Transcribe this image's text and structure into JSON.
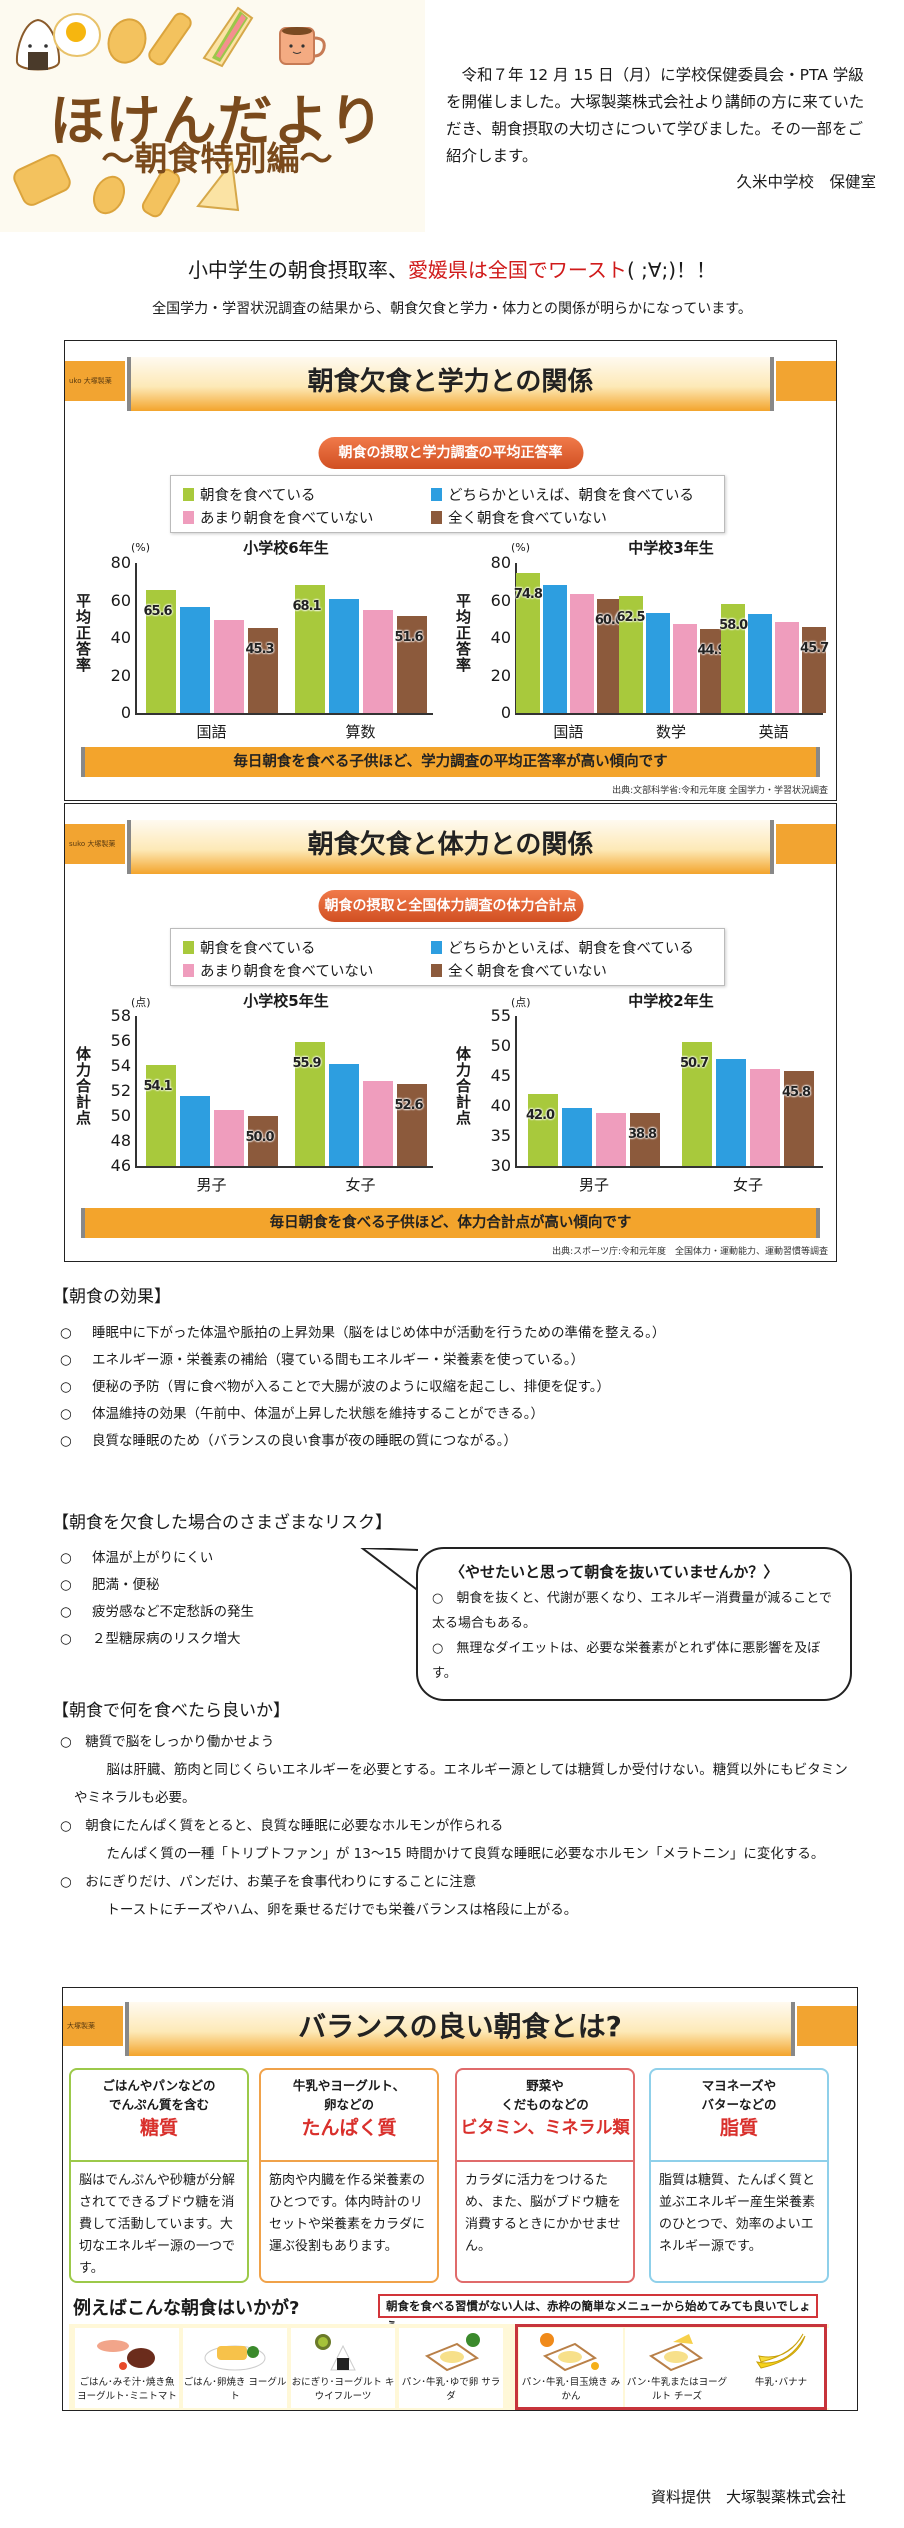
{
  "header": {
    "title": "ほけんだより",
    "subtitle": "～朝食特別編～",
    "intro": "令和７年 12 月 15 日（月）に学校保健委員会・PTA 学級を開催しました。大塚製薬株式会社より講師の方に来ていただき、朝食摂取の大切さについて学びました。その一部をご紹介します。",
    "signature": "久米中学校　保健室"
  },
  "headline": {
    "prefix": "小中学生の朝食摂取率、",
    "highlight": "愛媛県は全国でワースト",
    "suffix": "( ;∀;)！！"
  },
  "subline": "全国学力・学習状況調査の結果から、朝食欠食と学力・体力との関係が明らかになっています。",
  "legend": {
    "items": [
      {
        "label": "朝食を食べている",
        "color": "#a8c93c"
      },
      {
        "label": "どちらかといえば、朝食を食べている",
        "color": "#2d9ee0"
      },
      {
        "label": "あまり朝食を食べていない",
        "color": "#ef9dbd"
      },
      {
        "label": "全く朝食を食べていない",
        "color": "#8c5a3c"
      }
    ]
  },
  "panel_academic": {
    "brand": "uko 大塚製薬",
    "title": "朝食欠食と学力との関係",
    "pill": "朝食の摂取と学力調査の平均正答率",
    "tagline": "毎日朝食を食べる子供ほど、学力調査の平均正答率が高い傾向です",
    "source": "出典:文部科学省:令和元年度 全国学力・学習状況調査"
  },
  "panel_fitness": {
    "brand": "suko 大塚製薬",
    "title": "朝食欠食と体力との関係",
    "pill": "朝食の摂取と全国体力調査の体力合計点",
    "tagline": "毎日朝食を食べる子供ほど、体力合計点が高い傾向です",
    "source": "出典:スポーツ庁:令和元年度　全国体力・運動能力、運動習慣等調査"
  },
  "chart_data": [
    {
      "type": "bar",
      "title": "小学校6年生",
      "ylabel": "平均正答率",
      "unit": "(%)",
      "ylim": [
        0,
        80
      ],
      "yticks": [
        0,
        20,
        40,
        60,
        80
      ],
      "categories": [
        "国語",
        "算数"
      ],
      "series": [
        {
          "name": "朝食を食べている",
          "values": [
            65.6,
            68.1
          ]
        },
        {
          "name": "どちらかといえば、朝食を食べている",
          "values": [
            56.5,
            61.0
          ]
        },
        {
          "name": "あまり朝食を食べていない",
          "values": [
            49.5,
            55.0
          ]
        },
        {
          "name": "全く朝食を食べていない",
          "values": [
            45.3,
            51.6
          ]
        }
      ],
      "labels": [
        [
          "65.6",
          null,
          null,
          "45.3"
        ],
        [
          "68.1",
          null,
          null,
          "51.6"
        ]
      ]
    },
    {
      "type": "bar",
      "title": "中学校3年生",
      "ylabel": "平均正答率",
      "unit": "(%)",
      "ylim": [
        0,
        80
      ],
      "yticks": [
        0,
        20,
        40,
        60,
        80
      ],
      "categories": [
        "国語",
        "数学",
        "英語"
      ],
      "series": [
        {
          "name": "朝食を食べている",
          "values": [
            74.8,
            62.5,
            58.0
          ]
        },
        {
          "name": "どちらかといえば、朝食を食べている",
          "values": [
            68.5,
            53.5,
            53.0
          ]
        },
        {
          "name": "あまり朝食を食べていない",
          "values": [
            63.5,
            47.5,
            48.5
          ]
        },
        {
          "name": "全く朝食を食べていない",
          "values": [
            60.6,
            44.9,
            45.7
          ]
        }
      ],
      "labels": [
        [
          "74.8",
          null,
          null,
          "60.6"
        ],
        [
          "62.5",
          null,
          null,
          "44.9"
        ],
        [
          "58.0",
          null,
          null,
          "45.7"
        ]
      ]
    },
    {
      "type": "bar",
      "title": "小学校5年生",
      "ylabel": "体力合計点",
      "unit": "(点)",
      "ylim": [
        46,
        58
      ],
      "yticks": [
        46,
        48,
        50,
        52,
        54,
        56,
        58
      ],
      "categories": [
        "男子",
        "女子"
      ],
      "series": [
        {
          "name": "朝食を食べている",
          "values": [
            54.1,
            55.9
          ]
        },
        {
          "name": "どちらかといえば、朝食を食べている",
          "values": [
            51.6,
            54.2
          ]
        },
        {
          "name": "あまり朝食を食べていない",
          "values": [
            50.5,
            52.8
          ]
        },
        {
          "name": "全く朝食を食べていない",
          "values": [
            50.0,
            52.6
          ]
        }
      ],
      "labels": [
        [
          "54.1",
          null,
          null,
          "50.0"
        ],
        [
          "55.9",
          null,
          null,
          "52.6"
        ]
      ]
    },
    {
      "type": "bar",
      "title": "中学校2年生",
      "ylabel": "体力合計点",
      "unit": "(点)",
      "ylim": [
        30,
        55
      ],
      "yticks": [
        30,
        35,
        40,
        45,
        50,
        55
      ],
      "categories": [
        "男子",
        "女子"
      ],
      "series": [
        {
          "name": "朝食を食べている",
          "values": [
            42.0,
            50.7
          ]
        },
        {
          "name": "どちらかといえば、朝食を食べている",
          "values": [
            39.7,
            47.8
          ]
        },
        {
          "name": "あまり朝食を食べていない",
          "values": [
            38.9,
            46.2
          ]
        },
        {
          "name": "全く朝食を食べていない",
          "values": [
            38.8,
            45.8
          ]
        }
      ],
      "labels": [
        [
          "42.0",
          null,
          null,
          "38.8"
        ],
        [
          "50.7",
          null,
          null,
          "45.8"
        ]
      ]
    }
  ],
  "effects": {
    "title": "【朝食の効果】",
    "bullet": "○",
    "items": [
      "睡眠中に下がった体温や脈拍の上昇効果（脳をはじめ体中が活動を行うための準備を整える。）",
      "エネルギー源・栄養素の補給（寝ている間もエネルギー・栄養素を使っている。）",
      "便秘の予防（胃に食べ物が入ることで大腸が波のように収縮を起こし、排便を促す。）",
      "体温維持の効果（午前中、体温が上昇した状態を維持することができる。）",
      "良質な睡眠のため（バランスの良い食事が夜の睡眠の質につながる。）"
    ]
  },
  "risks": {
    "title": "【朝食を欠食した場合のさまざまなリスク】",
    "items": [
      "体温が上がりにくい",
      "肥満・便秘",
      "疲労感など不定愁訴の発生",
      "２型糖尿病のリスク増大"
    ]
  },
  "bubble": {
    "title": "〈やせたいと思って朝食を抜いていませんか？〉",
    "items": [
      "○　朝食を抜くと、代謝が悪くなり、エネルギー消費量が減ることで太る場合もある。",
      "○　無理なダイエットは、必要な栄養素がとれず体に悪影響を及ぼす。"
    ]
  },
  "what_to_eat": {
    "title": "【朝食で何を食べたら良いか】",
    "items": [
      {
        "head": "○　糖質で脳をしっかり働かせよう",
        "body": "脳は肝臓、筋肉と同じくらいエネルギーを必要とする。エネルギー源としては糖質しか受付けない。糖質以外にもビタミンやミネラルも必要。"
      },
      {
        "head": "○　朝食にたんぱく質をとると、良質な睡眠に必要なホルモンが作られる",
        "body": "たんぱく質の一種「トリプトファン」が 13～15 時間かけて良質な睡眠に必要なホルモン「メラトニン」に変化する。"
      },
      {
        "head": "○　おにぎりだけ、パンだけ、お菓子を食事代わりにすることに注意",
        "body": "トーストにチーズやハム、卵を乗せるだけでも栄養バランスは格段に上がる。"
      }
    ]
  },
  "balance": {
    "brand": "大塚製薬",
    "title": "バランスの良い朝食とは?",
    "nutrients": [
      {
        "line1": "ごはんやパンなどの",
        "line2": "でんぷん質を含む",
        "name": "糖質",
        "desc": "脳はでんぷんや砂糖が分解されてできるブドウ糖を消費して活動しています。大切なエネルギー源の一つです。",
        "color": "#9cc94a"
      },
      {
        "line1": "牛乳やヨーグルト、",
        "line2": "卵などの",
        "name": "たんぱく質",
        "desc": "筋肉や内臓を作る栄養素のひとつです。体内時計のリセットや栄養素をカラダに運ぶ役割もあります。",
        "color": "#f0a24a"
      },
      {
        "line1": "野菜や",
        "line2": "くだものなどの",
        "name": "ビタミン、ミネラル類",
        "desc": "カラダに活力をつけるため、また、脳がブドウ糖を消費するときにかかせません。",
        "color": "#e06b6b"
      },
      {
        "line1": "マヨネーズや",
        "line2": "バターなどの",
        "name": "脂質",
        "desc": "脂質は糖質、たんぱく質と並ぶエネルギー産生栄養素のひとつで、効率のよいエネルギー源です。",
        "color": "#8fd0ea"
      }
    ],
    "example_title": "例えばこんな朝食はいかが?",
    "example_note": "朝食を食べる習慣がない人は、赤枠の簡単なメニューから始めてみても良いでしょう",
    "meals": [
      {
        "caption": "ごはん･みそ汁･焼き魚 ヨーグルト･ミニトマト"
      },
      {
        "caption": "ごはん･卵焼き ヨーグルト"
      },
      {
        "caption": "おにぎり･ヨーグルト キウイフルーツ"
      },
      {
        "caption": "パン･牛乳･ゆで卵 サラダ"
      },
      {
        "caption": "パン･牛乳･目玉焼き みかん"
      },
      {
        "caption": "パン･牛乳またはヨーグルト チーズ"
      },
      {
        "caption": "牛乳･バナナ"
      }
    ]
  },
  "credit": "資料提供　大塚製薬株式会社"
}
